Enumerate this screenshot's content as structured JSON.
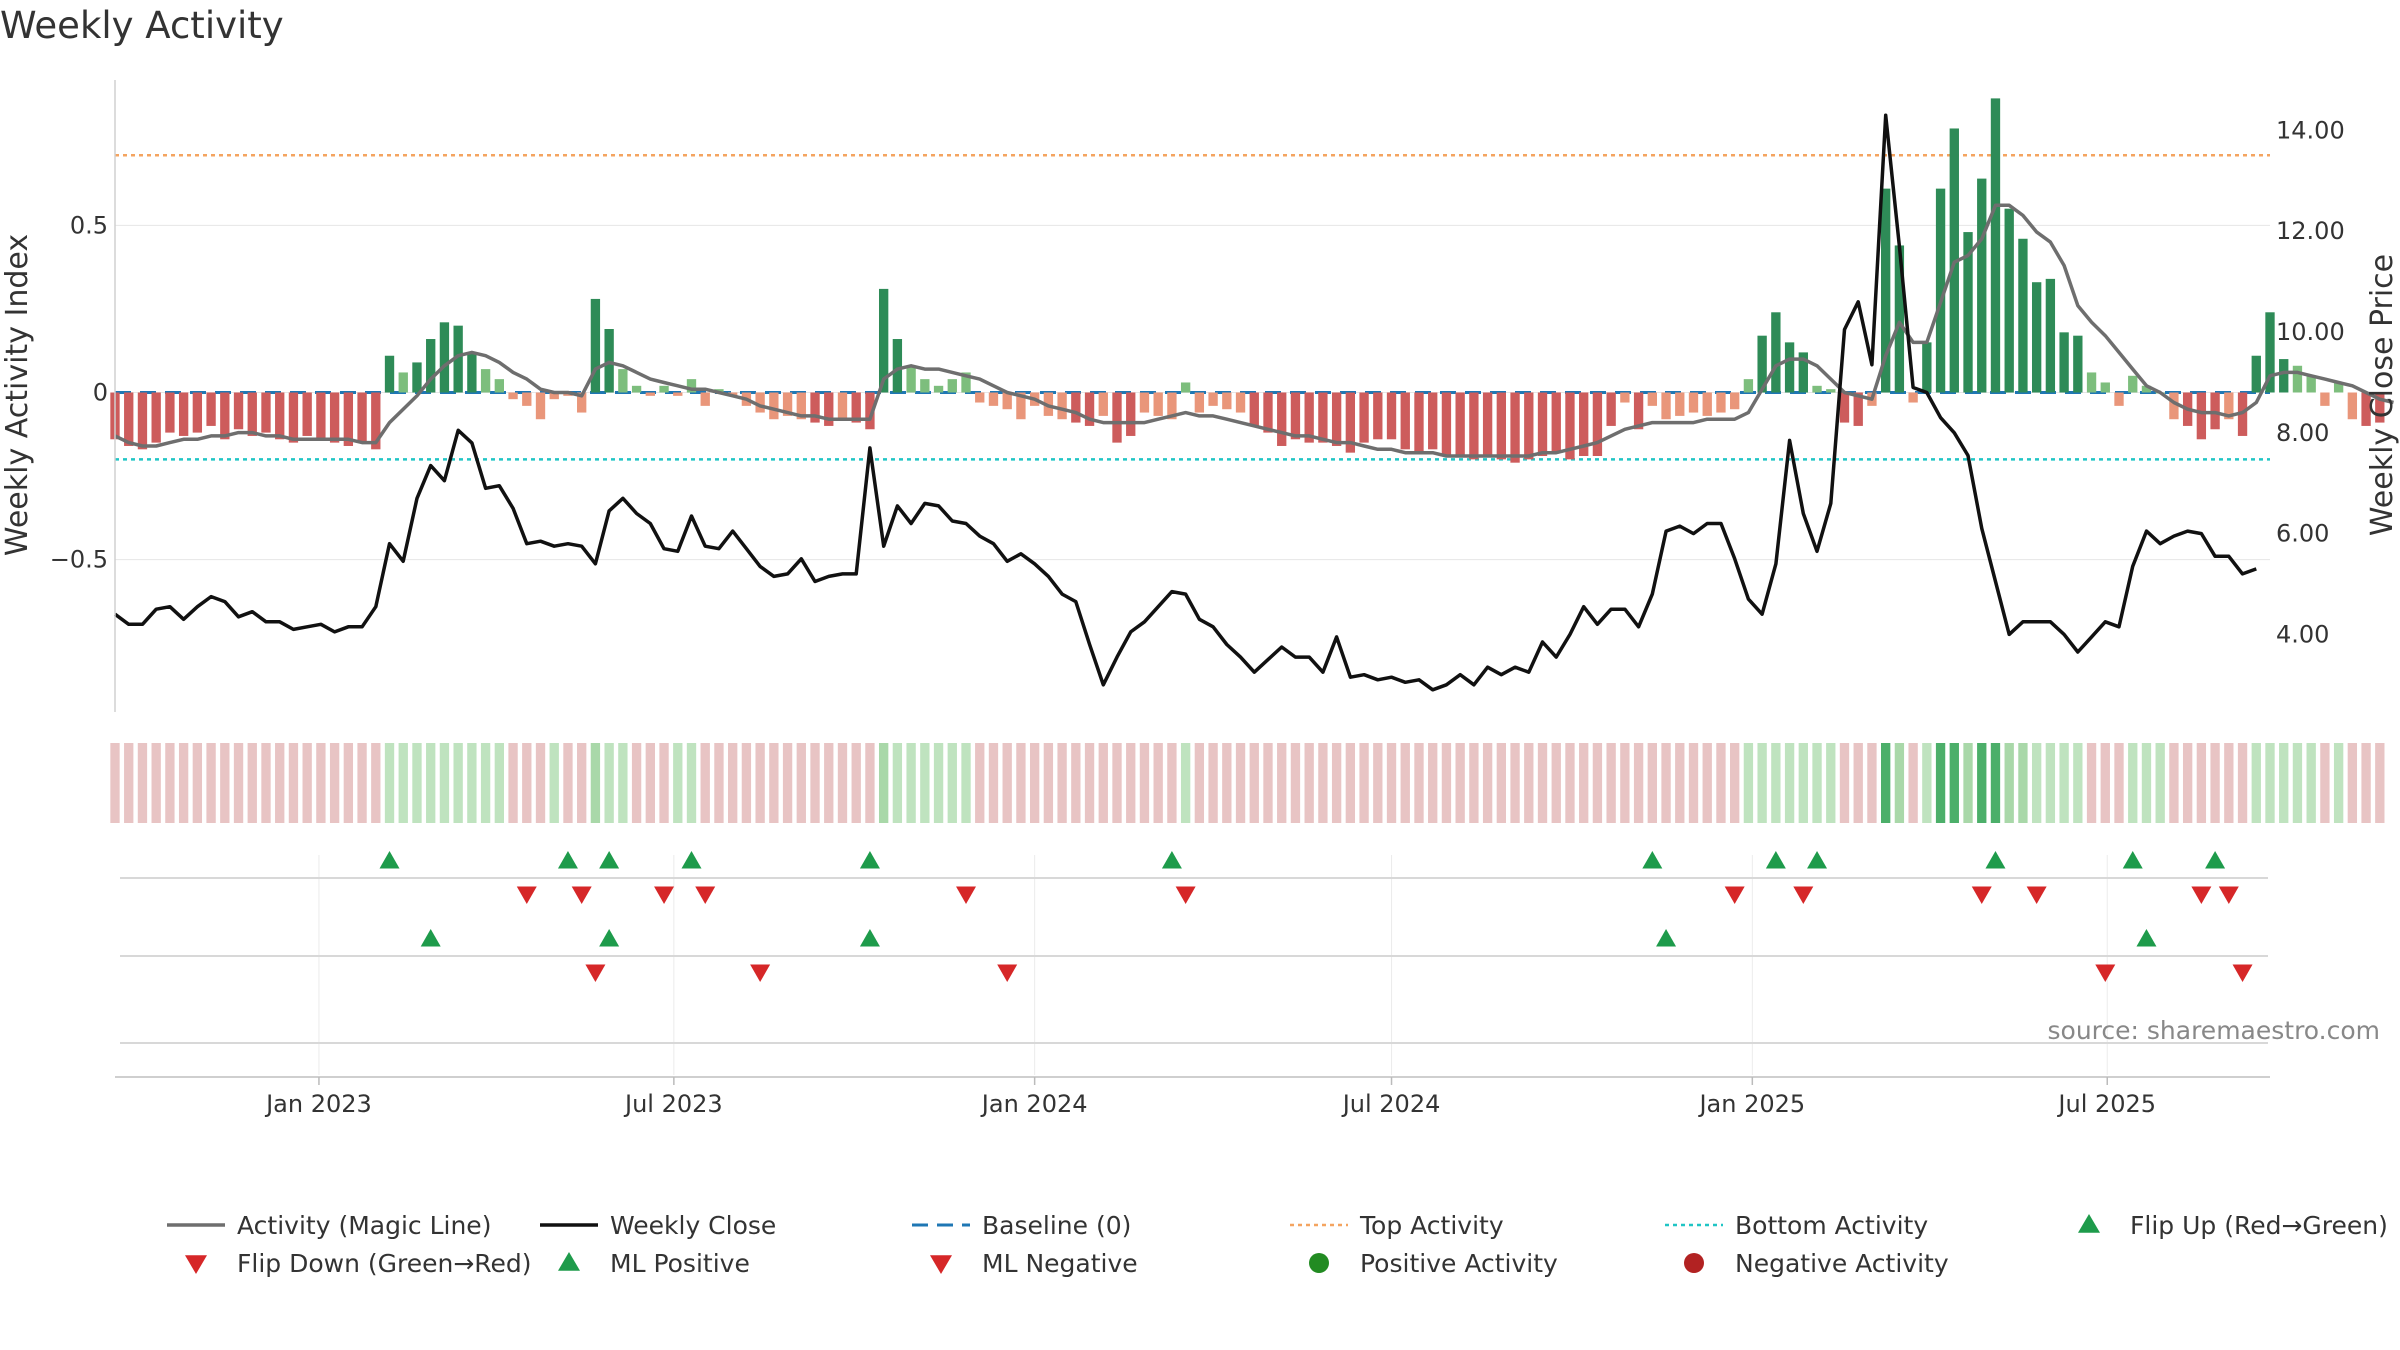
{
  "chart_data": {
    "type": "bar",
    "title": "Weekly Activity",
    "source": "source: sharemaestro.com",
    "ylabel": "Weekly Activity Index",
    "y2label": "Weekly Close Price",
    "ylim": [
      -0.95,
      0.95
    ],
    "y2lim": [
      2.5,
      15.1
    ],
    "y_ticks": [
      {
        "value": 0.5,
        "label": "0.5"
      },
      {
        "value": 0,
        "label": "0"
      },
      {
        "value": -0.5,
        "label": "−0.5"
      }
    ],
    "y2_ticks": [
      {
        "value": 14,
        "label": "14.00"
      },
      {
        "value": 12,
        "label": "12.00"
      },
      {
        "value": 10,
        "label": "10.00"
      },
      {
        "value": 8,
        "label": "8.00"
      },
      {
        "value": 6,
        "label": "6.00"
      },
      {
        "value": 4,
        "label": "4.00"
      }
    ],
    "x_start": "2022-09-19",
    "x_end": "2025-09-22",
    "x_ticks": [
      {
        "date": "2023-01-01",
        "label": "Jan 2023"
      },
      {
        "date": "2023-07-01",
        "label": "Jul 2023"
      },
      {
        "date": "2024-01-01",
        "label": "Jan 2024"
      },
      {
        "date": "2024-07-01",
        "label": "Jul 2024"
      },
      {
        "date": "2025-01-01",
        "label": "Jan 2025"
      },
      {
        "date": "2025-07-01",
        "label": "Jul 2025"
      }
    ],
    "first_week": "2022-09-19",
    "top_activity": 0.71,
    "bottom_activity": -0.2,
    "colors": {
      "pos_strong": "#2e8b57",
      "pos_light": "#7dbe7d",
      "neg_strong": "#cd5c5c",
      "neg_light": "#e9967a",
      "magic_line": "#6e6e6e",
      "close": "#111111",
      "baseline": "#1f77b4",
      "top": "#f4a460",
      "bottom": "#20c5c5",
      "flip_up": "#1e9b4b",
      "flip_down": "#d62728",
      "pos_dot": "#228b22",
      "neg_dot": "#b22222",
      "grid": "#e6e6e6",
      "strip_neg": "#e8c4c4",
      "strip_pos": "#a9d8a9",
      "strip_pos_strong": "#4caf6a"
    },
    "series": [
      {
        "name": "Weekly Activity Index",
        "kind": "bar",
        "values": [
          -0.14,
          -0.16,
          -0.17,
          -0.15,
          -0.12,
          -0.13,
          -0.12,
          -0.1,
          -0.14,
          -0.11,
          -0.13,
          -0.12,
          -0.14,
          -0.15,
          -0.13,
          -0.14,
          -0.15,
          -0.16,
          -0.15,
          -0.17,
          0.11,
          0.06,
          0.09,
          0.16,
          0.21,
          0.2,
          0.12,
          0.07,
          0.04,
          -0.02,
          -0.04,
          -0.08,
          -0.02,
          -0.01,
          -0.06,
          0.28,
          0.19,
          0.07,
          0.02,
          -0.01,
          0.02,
          -0.01,
          0.04,
          -0.04,
          0.01,
          -0.01,
          -0.04,
          -0.06,
          -0.08,
          -0.07,
          -0.08,
          -0.09,
          -0.1,
          -0.08,
          -0.09,
          -0.11,
          0.31,
          0.16,
          0.08,
          0.04,
          0.02,
          0.04,
          0.06,
          -0.03,
          -0.04,
          -0.05,
          -0.08,
          -0.04,
          -0.07,
          -0.08,
          -0.09,
          -0.1,
          -0.07,
          -0.15,
          -0.13,
          -0.06,
          -0.07,
          -0.08,
          0.03,
          -0.06,
          -0.04,
          -0.05,
          -0.06,
          -0.1,
          -0.12,
          -0.16,
          -0.14,
          -0.15,
          -0.15,
          -0.16,
          -0.18,
          -0.15,
          -0.14,
          -0.14,
          -0.17,
          -0.18,
          -0.17,
          -0.19,
          -0.19,
          -0.2,
          -0.19,
          -0.2,
          -0.21,
          -0.2,
          -0.19,
          -0.18,
          -0.2,
          -0.19,
          -0.19,
          -0.1,
          -0.03,
          -0.11,
          -0.04,
          -0.08,
          -0.07,
          -0.06,
          -0.07,
          -0.06,
          -0.05,
          0.04,
          0.17,
          0.24,
          0.15,
          0.12,
          0.02,
          0.01,
          -0.09,
          -0.1,
          -0.04,
          0.61,
          0.44,
          -0.03,
          0.15,
          0.61,
          0.79,
          0.48,
          0.64,
          0.88,
          0.55,
          0.46,
          0.33,
          0.34,
          0.18,
          0.17,
          0.06,
          0.03,
          -0.04,
          0.05,
          0.02,
          0.0,
          -0.08,
          -0.1,
          -0.14,
          -0.11,
          -0.08,
          -0.13,
          0.11,
          0.24,
          0.1,
          0.08,
          0.05,
          -0.04,
          0.03,
          -0.08,
          -0.1,
          -0.09
        ]
      },
      {
        "name": "Activity (Magic Line)",
        "kind": "line",
        "values": [
          -0.13,
          -0.15,
          -0.16,
          -0.16,
          -0.15,
          -0.14,
          -0.14,
          -0.13,
          -0.13,
          -0.12,
          -0.12,
          -0.13,
          -0.13,
          -0.14,
          -0.14,
          -0.14,
          -0.14,
          -0.14,
          -0.15,
          -0.15,
          -0.09,
          -0.05,
          -0.01,
          0.04,
          0.08,
          0.11,
          0.12,
          0.11,
          0.09,
          0.06,
          0.04,
          0.01,
          0.0,
          0.0,
          -0.01,
          0.07,
          0.09,
          0.08,
          0.06,
          0.04,
          0.03,
          0.02,
          0.01,
          0.01,
          0.0,
          -0.01,
          -0.02,
          -0.04,
          -0.05,
          -0.06,
          -0.07,
          -0.07,
          -0.08,
          -0.08,
          -0.08,
          -0.08,
          0.04,
          0.07,
          0.08,
          0.07,
          0.07,
          0.06,
          0.05,
          0.04,
          0.02,
          0.0,
          -0.01,
          -0.02,
          -0.04,
          -0.05,
          -0.06,
          -0.08,
          -0.09,
          -0.09,
          -0.09,
          -0.09,
          -0.08,
          -0.07,
          -0.06,
          -0.07,
          -0.07,
          -0.08,
          -0.09,
          -0.1,
          -0.11,
          -0.12,
          -0.13,
          -0.13,
          -0.14,
          -0.15,
          -0.15,
          -0.16,
          -0.17,
          -0.17,
          -0.18,
          -0.18,
          -0.18,
          -0.19,
          -0.19,
          -0.19,
          -0.19,
          -0.19,
          -0.19,
          -0.19,
          -0.18,
          -0.18,
          -0.17,
          -0.16,
          -0.15,
          -0.13,
          -0.11,
          -0.1,
          -0.09,
          -0.09,
          -0.09,
          -0.09,
          -0.08,
          -0.08,
          -0.08,
          -0.06,
          0.01,
          0.08,
          0.1,
          0.1,
          0.08,
          0.04,
          0.0,
          -0.01,
          -0.02,
          0.11,
          0.21,
          0.15,
          0.15,
          0.27,
          0.39,
          0.41,
          0.46,
          0.56,
          0.56,
          0.53,
          0.48,
          0.45,
          0.38,
          0.26,
          0.21,
          0.17,
          0.12,
          0.07,
          0.02,
          0.0,
          -0.03,
          -0.05,
          -0.06,
          -0.06,
          -0.07,
          -0.06,
          -0.03,
          0.05,
          0.06,
          0.06,
          0.05,
          0.04,
          0.03,
          0.02,
          0.0,
          -0.02,
          -0.03
        ]
      },
      {
        "name": "Weekly Close",
        "kind": "line",
        "axis": "right",
        "values": [
          4.4,
          4.2,
          4.2,
          4.5,
          4.55,
          4.3,
          4.55,
          4.75,
          4.65,
          4.35,
          4.45,
          4.25,
          4.25,
          4.1,
          4.15,
          4.2,
          4.05,
          4.15,
          4.15,
          4.55,
          5.8,
          5.45,
          6.7,
          7.35,
          7.05,
          8.05,
          7.8,
          6.9,
          6.95,
          6.5,
          5.8,
          5.85,
          5.75,
          5.8,
          5.75,
          5.4,
          6.45,
          6.7,
          6.4,
          6.2,
          5.7,
          5.65,
          6.35,
          5.75,
          5.7,
          6.05,
          5.7,
          5.35,
          5.15,
          5.2,
          5.5,
          5.05,
          5.15,
          5.2,
          5.2,
          7.7,
          5.75,
          6.55,
          6.2,
          6.6,
          6.55,
          6.25,
          6.2,
          5.95,
          5.8,
          5.45,
          5.6,
          5.4,
          5.15,
          4.8,
          4.65,
          3.8,
          3.0,
          3.55,
          4.05,
          4.25,
          4.55,
          4.85,
          4.8,
          4.3,
          4.15,
          3.8,
          3.55,
          3.25,
          3.5,
          3.75,
          3.55,
          3.55,
          3.25,
          3.95,
          3.15,
          3.2,
          3.1,
          3.15,
          3.05,
          3.1,
          2.9,
          3.0,
          3.2,
          3.0,
          3.35,
          3.2,
          3.35,
          3.25,
          3.85,
          3.55,
          4.0,
          4.55,
          4.2,
          4.5,
          4.5,
          4.15,
          4.8,
          6.05,
          6.15,
          6.0,
          6.2,
          6.2,
          5.5,
          4.7,
          4.4,
          5.4,
          7.85,
          6.4,
          5.65,
          6.6,
          10.05,
          10.6,
          9.35,
          14.3,
          11.7,
          8.9,
          8.8,
          8.3,
          8.0,
          7.55,
          6.1,
          5.05,
          4.0,
          4.25,
          4.25,
          4.25,
          4.0,
          3.65,
          3.95,
          4.25,
          4.15,
          5.35,
          6.05,
          5.8,
          5.95,
          6.05,
          6.0,
          5.55,
          5.55,
          5.2,
          5.3
        ]
      }
    ],
    "strip": [
      -1,
      -1,
      -1,
      -1,
      -1,
      -1,
      -1,
      -1,
      -1,
      -1,
      -1,
      -1,
      -1,
      -1,
      -1,
      -1,
      -1,
      -1,
      -1,
      -1,
      1,
      1,
      1,
      1,
      1,
      1,
      1,
      1,
      1,
      -1,
      -1,
      -1,
      1,
      -1,
      -1,
      2,
      1,
      1,
      -1,
      -1,
      -1,
      1,
      1,
      -1,
      -1,
      -1,
      -1,
      -1,
      -1,
      -1,
      -1,
      -1,
      -1,
      -1,
      -1,
      -1,
      2,
      1,
      1,
      1,
      1,
      1,
      1,
      -1,
      -1,
      -1,
      -1,
      -1,
      -1,
      -1,
      -1,
      -1,
      -1,
      -1,
      -1,
      -1,
      -1,
      -1,
      1,
      -1,
      -1,
      -1,
      -1,
      -1,
      -1,
      -1,
      -1,
      -1,
      -1,
      -1,
      -1,
      -1,
      -1,
      -1,
      -1,
      -1,
      -1,
      -1,
      -1,
      -1,
      -1,
      -1,
      -1,
      -1,
      -1,
      -1,
      -1,
      -1,
      -1,
      -1,
      -1,
      -1,
      -1,
      -1,
      -1,
      -1,
      -1,
      -1,
      -1,
      1,
      1,
      1,
      1,
      1,
      1,
      1,
      -1,
      -1,
      -1,
      3,
      2,
      -1,
      1,
      3,
      3,
      2,
      3,
      3,
      2,
      2,
      1,
      1,
      1,
      1,
      -1,
      -1,
      -1,
      1,
      1,
      1,
      -1,
      -1,
      -1,
      -1,
      -1,
      -1,
      1,
      1,
      1,
      1,
      1,
      -1,
      1,
      -1,
      -1,
      -1
    ],
    "markers": {
      "row1_up": [
        20,
        33,
        36,
        42,
        55,
        77,
        112,
        121,
        124,
        137,
        147,
        153
      ],
      "row1_down": [
        30,
        34,
        40,
        43,
        62,
        78,
        118,
        123,
        136,
        140,
        152,
        154
      ],
      "row2_up": [
        23,
        36,
        55,
        113,
        148
      ],
      "row2_down": [
        35,
        47,
        65,
        145,
        155
      ]
    },
    "legend": [
      {
        "label": "Activity (Magic Line)",
        "symbol": "line",
        "color": "#6e6e6e"
      },
      {
        "label": "Weekly Close",
        "symbol": "line",
        "color": "#111111"
      },
      {
        "label": "Baseline (0)",
        "symbol": "dash",
        "color": "#1f77b4"
      },
      {
        "label": "Top Activity",
        "symbol": "dot-line",
        "color": "#f4a460"
      },
      {
        "label": "Bottom Activity",
        "symbol": "dot-line",
        "color": "#20c5c5"
      },
      {
        "label": "Flip Up (Red→Green)",
        "symbol": "tri-up",
        "color": "#1e9b4b"
      },
      {
        "label": "Flip Down (Green→Red)",
        "symbol": "tri-down",
        "color": "#d62728"
      },
      {
        "label": "ML Positive",
        "symbol": "tri-up",
        "color": "#1e9b4b"
      },
      {
        "label": "ML Negative",
        "symbol": "tri-down",
        "color": "#d62728"
      },
      {
        "label": "Positive Activity",
        "symbol": "circle",
        "color": "#228b22"
      },
      {
        "label": "Negative Activity",
        "symbol": "circle",
        "color": "#b22222"
      }
    ]
  }
}
